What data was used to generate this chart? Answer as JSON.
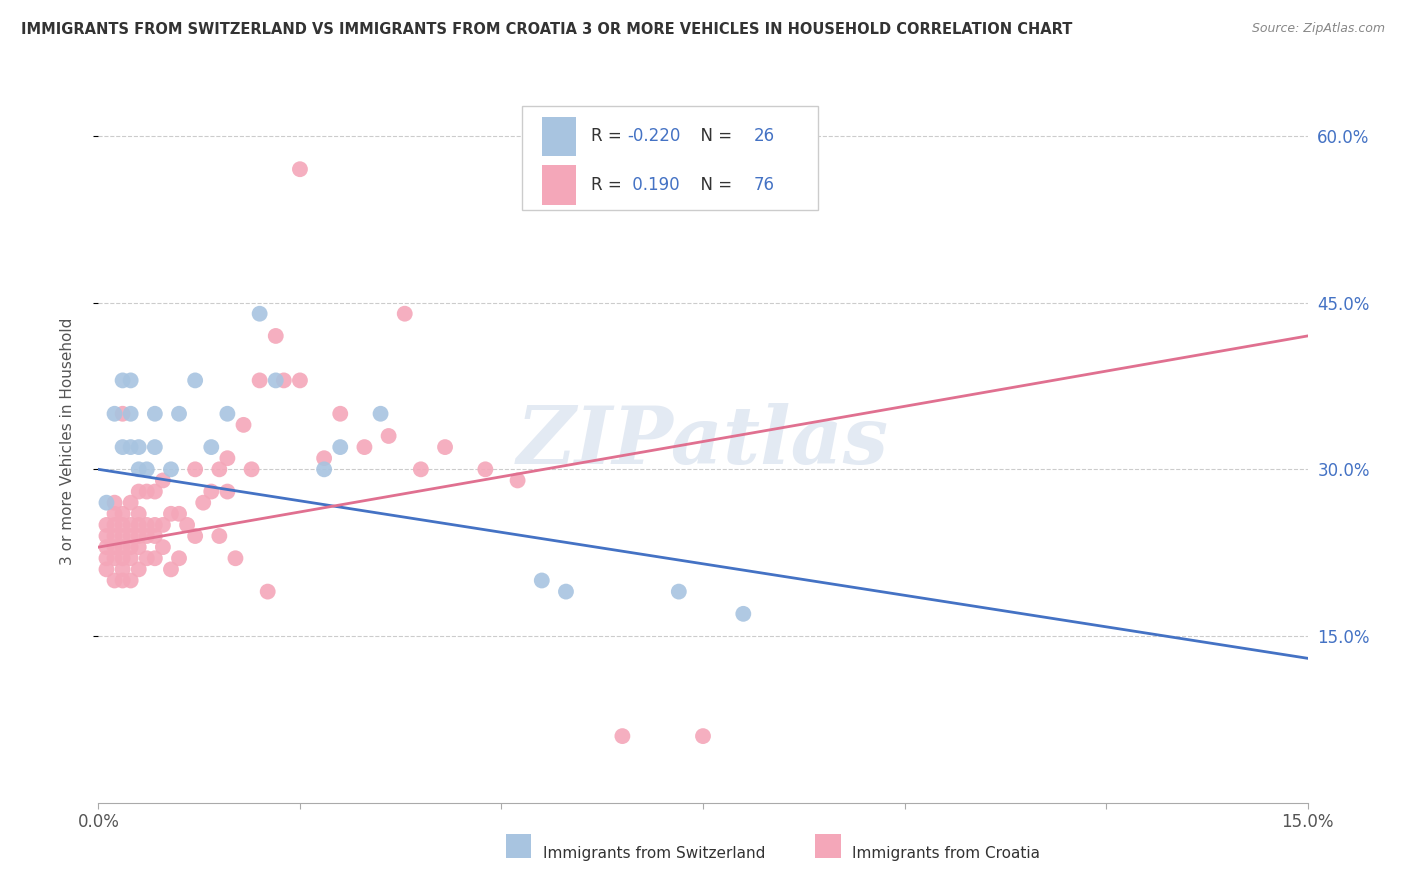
{
  "title": "IMMIGRANTS FROM SWITZERLAND VS IMMIGRANTS FROM CROATIA 3 OR MORE VEHICLES IN HOUSEHOLD CORRELATION CHART",
  "source": "Source: ZipAtlas.com",
  "ylabel": "3 or more Vehicles in Household",
  "xlabel_switzerland": "Immigrants from Switzerland",
  "xlabel_croatia": "Immigrants from Croatia",
  "r_switzerland": -0.22,
  "n_switzerland": 26,
  "r_croatia": 0.19,
  "n_croatia": 76,
  "color_switzerland": "#a8c4e0",
  "color_croatia": "#f4a7b9",
  "line_color_switzerland": "#4472c4",
  "line_color_croatia": "#e07090",
  "watermark_text": "ZIPatlas",
  "xlim": [
    0.0,
    0.15
  ],
  "ylim": [
    0.0,
    0.65
  ],
  "yticks": [
    0.15,
    0.3,
    0.45,
    0.6
  ],
  "ytick_labels": [
    "15.0%",
    "30.0%",
    "45.0%",
    "60.0%"
  ],
  "xticks": [
    0.0,
    0.025,
    0.05,
    0.075,
    0.1,
    0.125,
    0.15
  ],
  "xtick_labels": [
    "0.0%",
    "",
    "",
    "",
    "",
    "",
    "15.0%"
  ],
  "sw_line": [
    0.0,
    0.15,
    0.3,
    0.13
  ],
  "cr_line": [
    0.0,
    0.15,
    0.23,
    0.42
  ],
  "switzerland_x": [
    0.001,
    0.002,
    0.003,
    0.003,
    0.004,
    0.004,
    0.004,
    0.005,
    0.005,
    0.006,
    0.007,
    0.007,
    0.009,
    0.01,
    0.012,
    0.014,
    0.016,
    0.02,
    0.022,
    0.028,
    0.03,
    0.035,
    0.055,
    0.058,
    0.072,
    0.08
  ],
  "switzerland_y": [
    0.27,
    0.35,
    0.32,
    0.38,
    0.32,
    0.35,
    0.38,
    0.3,
    0.32,
    0.3,
    0.32,
    0.35,
    0.3,
    0.35,
    0.38,
    0.32,
    0.35,
    0.44,
    0.38,
    0.3,
    0.32,
    0.35,
    0.2,
    0.19,
    0.19,
    0.17
  ],
  "croatia_x": [
    0.001,
    0.001,
    0.001,
    0.001,
    0.001,
    0.002,
    0.002,
    0.002,
    0.002,
    0.002,
    0.002,
    0.002,
    0.003,
    0.003,
    0.003,
    0.003,
    0.003,
    0.003,
    0.003,
    0.003,
    0.004,
    0.004,
    0.004,
    0.004,
    0.004,
    0.004,
    0.005,
    0.005,
    0.005,
    0.005,
    0.005,
    0.005,
    0.006,
    0.006,
    0.006,
    0.006,
    0.007,
    0.007,
    0.007,
    0.007,
    0.008,
    0.008,
    0.008,
    0.009,
    0.009,
    0.01,
    0.01,
    0.011,
    0.012,
    0.012,
    0.013,
    0.014,
    0.015,
    0.015,
    0.016,
    0.016,
    0.017,
    0.018,
    0.019,
    0.02,
    0.021,
    0.022,
    0.023,
    0.025,
    0.025,
    0.028,
    0.03,
    0.033,
    0.036,
    0.038,
    0.04,
    0.043,
    0.048,
    0.052,
    0.065,
    0.075
  ],
  "croatia_y": [
    0.21,
    0.22,
    0.23,
    0.24,
    0.25,
    0.2,
    0.22,
    0.23,
    0.24,
    0.25,
    0.26,
    0.27,
    0.2,
    0.21,
    0.22,
    0.23,
    0.24,
    0.25,
    0.26,
    0.35,
    0.2,
    0.22,
    0.23,
    0.24,
    0.25,
    0.27,
    0.21,
    0.23,
    0.24,
    0.25,
    0.26,
    0.28,
    0.22,
    0.24,
    0.25,
    0.28,
    0.22,
    0.24,
    0.25,
    0.28,
    0.23,
    0.25,
    0.29,
    0.21,
    0.26,
    0.22,
    0.26,
    0.25,
    0.24,
    0.3,
    0.27,
    0.28,
    0.24,
    0.3,
    0.28,
    0.31,
    0.22,
    0.34,
    0.3,
    0.38,
    0.19,
    0.42,
    0.38,
    0.38,
    0.57,
    0.31,
    0.35,
    0.32,
    0.33,
    0.44,
    0.3,
    0.32,
    0.3,
    0.29,
    0.06,
    0.06
  ],
  "bg_color": "#ffffff",
  "grid_color": "#cccccc",
  "title_color": "#333333",
  "source_color": "#888888",
  "ylabel_color": "#555555",
  "tick_color": "#555555"
}
